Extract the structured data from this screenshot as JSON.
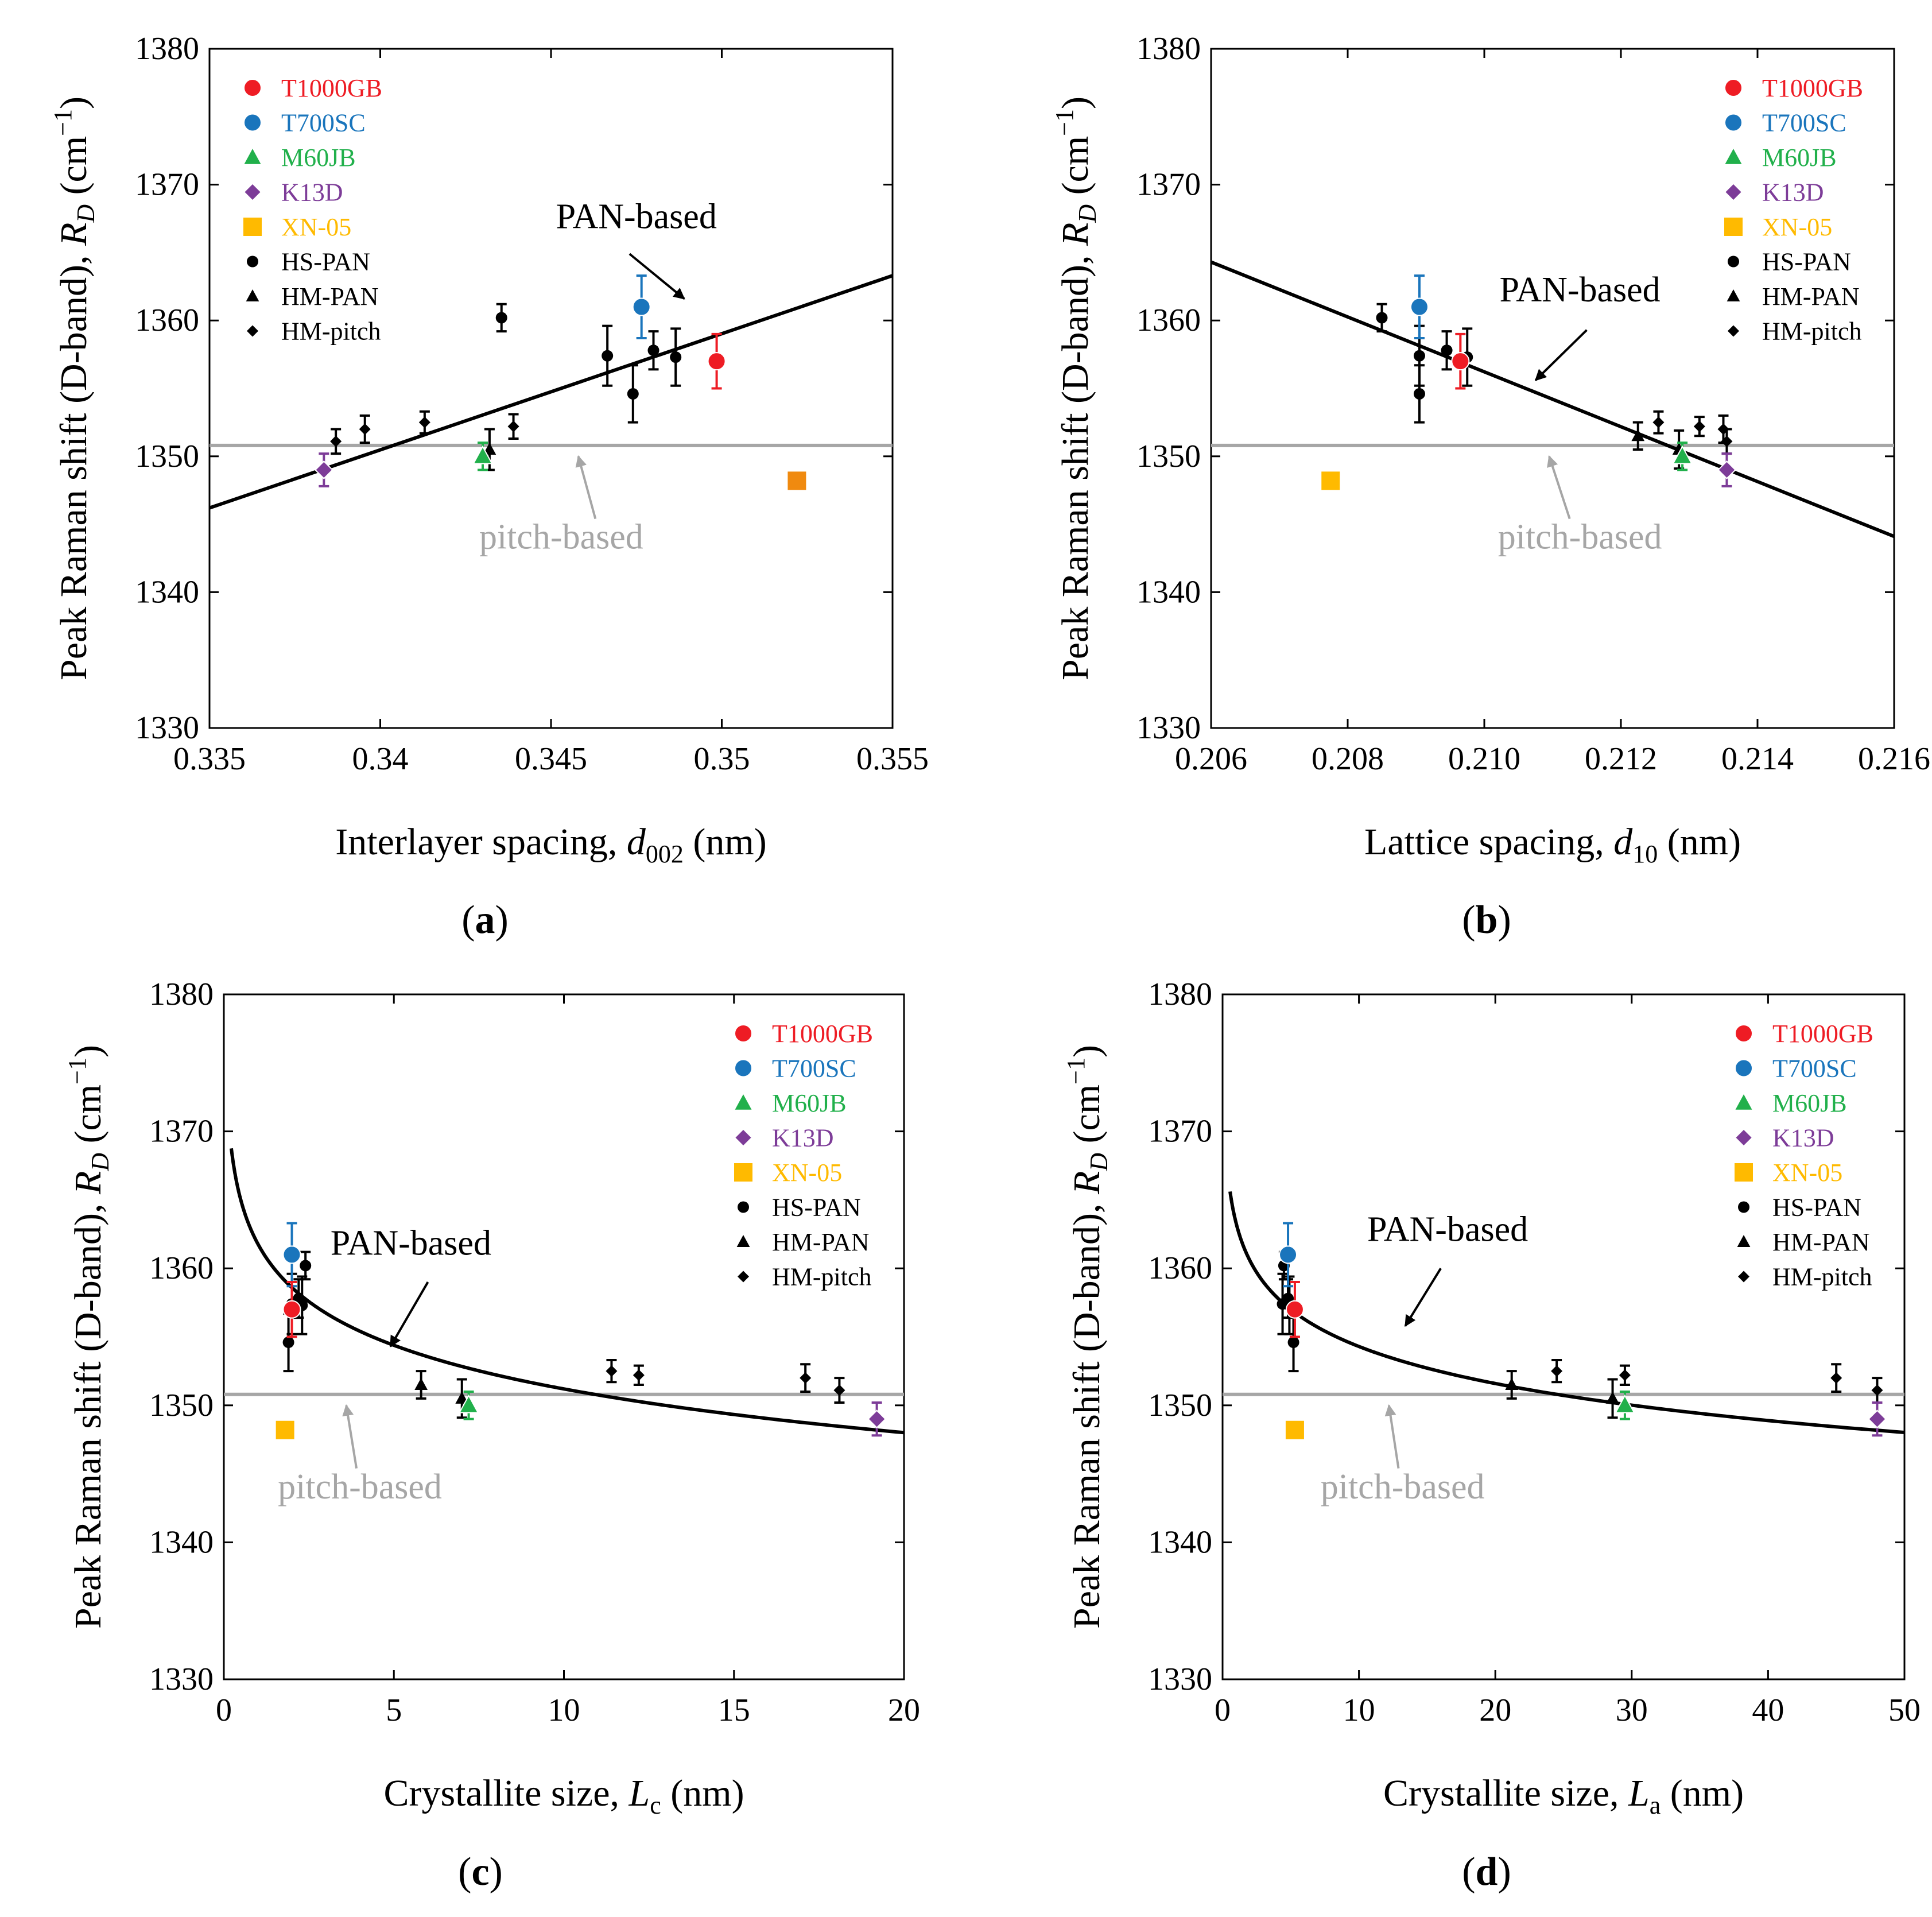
{
  "figure": {
    "ylabel_text": "Peak Raman shift (D-band), ",
    "ylabel_var": "R",
    "ylabel_sub": "D",
    "ylabel_unit": " (cm",
    "ylabel_sup": "−1",
    "ylabel_close": ")",
    "pan_label": "PAN-based",
    "pitch_label": "pitch-based"
  },
  "colors": {
    "T1000GB": "#ee1c24",
    "T700SC": "#1a75bc",
    "M60JB": "#21b04b",
    "K13D": "#7d3c98",
    "XN-05": "#ffba00",
    "black": "#000000",
    "gray": "#a6a6a6"
  },
  "legend": [
    {
      "label": "T1000GB",
      "marker": "circle",
      "color": "#ee1c24",
      "text_color": "#ee1c24"
    },
    {
      "label": "T700SC",
      "marker": "circle",
      "color": "#1a75bc",
      "text_color": "#1a75bc"
    },
    {
      "label": "M60JB",
      "marker": "triangle",
      "color": "#21b04b",
      "text_color": "#21b04b"
    },
    {
      "label": "K13D",
      "marker": "diamond",
      "color": "#7d3c98",
      "text_color": "#7d3c98"
    },
    {
      "label": "XN-05",
      "marker": "square",
      "color": "#ffba00",
      "text_color": "#ffba00"
    },
    {
      "label": "HS-PAN",
      "marker": "circle-small",
      "color": "#000000",
      "text_color": "#000000"
    },
    {
      "label": "HM-PAN",
      "marker": "triangle-small",
      "color": "#000000",
      "text_color": "#000000"
    },
    {
      "label": "HM-pitch",
      "marker": "diamond-small",
      "color": "#000000",
      "text_color": "#000000"
    }
  ],
  "chart_data": [
    {
      "panel": "a",
      "panel_label": "a",
      "type": "scatter",
      "xlabel_pre": "Interlayer spacing, ",
      "xlabel_var": "d",
      "xlabel_sub": "002",
      "xlabel_post": " (nm)",
      "xlim": [
        0.335,
        0.355
      ],
      "ylim": [
        1330,
        1380
      ],
      "xticks": [
        "0.335",
        "0.34",
        "0.345",
        "0.35",
        "0.355"
      ],
      "xtick_values": [
        0.335,
        0.34,
        0.345,
        0.35,
        0.355
      ],
      "yticks": [
        "1330",
        "1340",
        "1350",
        "1360",
        "1370",
        "1380"
      ],
      "ytick_values": [
        1330,
        1340,
        1350,
        1360,
        1370,
        1380
      ],
      "legend_position": "top-left",
      "pitch_line_y": 1350.8,
      "pan_fit": {
        "form": "linear",
        "points": [
          [
            0.335,
            1346.2
          ],
          [
            0.355,
            1363.3
          ]
        ]
      },
      "pan_label_pos": [
        0.3475,
        1366.8
      ],
      "pan_arrow": {
        "from": [
          0.3473,
          1364.9
        ],
        "to": [
          0.3489,
          1361.6
        ]
      },
      "pitch_label_pos": [
        0.3453,
        1343.2
      ],
      "pitch_arrow": {
        "from": [
          0.3463,
          1345.4
        ],
        "to": [
          0.3458,
          1350.0
        ]
      },
      "series": [
        {
          "name": "T1000GB",
          "marker": "circle",
          "color": "#ee1c24",
          "points": [
            {
              "x": 0.34985,
              "y": 1357.0,
              "err": 2.0
            }
          ]
        },
        {
          "name": "T700SC",
          "marker": "circle",
          "color": "#1a75bc",
          "points": [
            {
              "x": 0.34765,
              "y": 1361.0,
              "err": 2.3
            }
          ]
        },
        {
          "name": "M60JB",
          "marker": "triangle",
          "color": "#21b04b",
          "points": [
            {
              "x": 0.343,
              "y": 1350.0,
              "err": 1.0
            }
          ]
        },
        {
          "name": "K13D",
          "marker": "diamond",
          "color": "#7d3c98",
          "points": [
            {
              "x": 0.33835,
              "y": 1349.0,
              "err": 1.2
            }
          ]
        },
        {
          "name": "XN-05",
          "marker": "square",
          "color": "#f08a0f",
          "points": [
            {
              "x": 0.3522,
              "y": 1348.2,
              "err": 0
            }
          ]
        },
        {
          "name": "HS-PAN",
          "marker": "circle-small",
          "color": "#000000",
          "points": [
            {
              "x": 0.34355,
              "y": 1360.2,
              "err": 1.0
            },
            {
              "x": 0.34665,
              "y": 1357.4,
              "err": 2.2
            },
            {
              "x": 0.3474,
              "y": 1354.6,
              "err": 2.1
            },
            {
              "x": 0.348,
              "y": 1357.8,
              "err": 1.4
            },
            {
              "x": 0.34865,
              "y": 1357.3,
              "err": 2.1
            }
          ]
        },
        {
          "name": "HM-PAN",
          "marker": "triangle-small",
          "color": "#000000",
          "points": [
            {
              "x": 0.3432,
              "y": 1350.5,
              "err": 1.5
            }
          ]
        },
        {
          "name": "HM-pitch",
          "marker": "diamond-small",
          "color": "#000000",
          "points": [
            {
              "x": 0.3387,
              "y": 1351.1,
              "err": 0.9
            },
            {
              "x": 0.33955,
              "y": 1352.0,
              "err": 1.0
            },
            {
              "x": 0.3413,
              "y": 1352.5,
              "err": 0.8
            },
            {
              "x": 0.3439,
              "y": 1352.2,
              "err": 0.9
            }
          ]
        }
      ]
    },
    {
      "panel": "b",
      "panel_label": "b",
      "type": "scatter",
      "xlabel_pre": "Lattice spacing, ",
      "xlabel_var": "d",
      "xlabel_sub": "10",
      "xlabel_post": " (nm)",
      "xlim": [
        0.206,
        0.216
      ],
      "ylim": [
        1330,
        1380
      ],
      "xticks": [
        "0.206",
        "0.208",
        "0.210",
        "0.212",
        "0.214",
        "0.216"
      ],
      "xtick_values": [
        0.206,
        0.208,
        0.21,
        0.212,
        0.214,
        0.216
      ],
      "yticks": [
        "1330",
        "1340",
        "1350",
        "1360",
        "1370",
        "1380"
      ],
      "ytick_values": [
        1330,
        1340,
        1350,
        1360,
        1370,
        1380
      ],
      "legend_position": "top-right",
      "pitch_line_y": 1350.8,
      "pan_fit": {
        "form": "linear",
        "points": [
          [
            0.206,
            1364.3
          ],
          [
            0.216,
            1344.1
          ]
        ]
      },
      "pan_label_pos": [
        0.2114,
        1361.4
      ],
      "pan_arrow": {
        "from": [
          0.2115,
          1359.3
        ],
        "to": [
          0.21075,
          1355.6
        ]
      },
      "pitch_label_pos": [
        0.2114,
        1343.2
      ],
      "pitch_arrow": {
        "from": [
          0.21125,
          1345.4
        ],
        "to": [
          0.21095,
          1350.0
        ]
      },
      "series": [
        {
          "name": "T1000GB",
          "marker": "circle",
          "color": "#ee1c24",
          "points": [
            {
              "x": 0.20965,
              "y": 1357.0,
              "err": 2.0
            }
          ]
        },
        {
          "name": "T700SC",
          "marker": "circle",
          "color": "#1a75bc",
          "points": [
            {
              "x": 0.20905,
              "y": 1361.0,
              "err": 2.3
            }
          ]
        },
        {
          "name": "M60JB",
          "marker": "triangle",
          "color": "#21b04b",
          "points": [
            {
              "x": 0.2129,
              "y": 1350.0,
              "err": 1.0
            }
          ]
        },
        {
          "name": "K13D",
          "marker": "diamond",
          "color": "#7d3c98",
          "points": [
            {
              "x": 0.21355,
              "y": 1349.0,
              "err": 1.2
            }
          ]
        },
        {
          "name": "XN-05",
          "marker": "square",
          "color": "#ffba00",
          "points": [
            {
              "x": 0.20775,
              "y": 1348.2,
              "err": 0
            }
          ]
        },
        {
          "name": "HS-PAN",
          "marker": "circle-small",
          "color": "#000000",
          "points": [
            {
              "x": 0.2085,
              "y": 1360.2,
              "err": 1.0
            },
            {
              "x": 0.20905,
              "y": 1357.4,
              "err": 2.2
            },
            {
              "x": 0.20905,
              "y": 1354.6,
              "err": 2.1
            },
            {
              "x": 0.20945,
              "y": 1357.8,
              "err": 1.4
            },
            {
              "x": 0.20975,
              "y": 1357.3,
              "err": 2.1
            }
          ]
        },
        {
          "name": "HM-PAN",
          "marker": "triangle-small",
          "color": "#000000",
          "points": [
            {
              "x": 0.21225,
              "y": 1351.5,
              "err": 1.0
            },
            {
              "x": 0.21285,
              "y": 1350.5,
              "err": 1.4
            }
          ]
        },
        {
          "name": "HM-pitch",
          "marker": "diamond-small",
          "color": "#000000",
          "points": [
            {
              "x": 0.21255,
              "y": 1352.5,
              "err": 0.8
            },
            {
              "x": 0.21315,
              "y": 1352.2,
              "err": 0.7
            },
            {
              "x": 0.2135,
              "y": 1352.0,
              "err": 1.0
            },
            {
              "x": 0.21355,
              "y": 1351.1,
              "err": 0.9
            }
          ]
        }
      ]
    },
    {
      "panel": "c",
      "panel_label": "c",
      "type": "scatter",
      "xlabel_pre": "Crystallite size, ",
      "xlabel_var": "L",
      "xlabel_sub": "c",
      "xlabel_post": " (nm)",
      "xlim": [
        0,
        20
      ],
      "ylim": [
        1330,
        1380
      ],
      "xticks": [
        "0",
        "5",
        "10",
        "15",
        "20"
      ],
      "xtick_values": [
        0,
        5,
        10,
        15,
        20
      ],
      "yticks": [
        "1330",
        "1340",
        "1350",
        "1360",
        "1370",
        "1380"
      ],
      "ytick_values": [
        1330,
        1340,
        1350,
        1360,
        1370,
        1380
      ],
      "legend_position": "top-right",
      "pitch_line_y": 1350.8,
      "pan_fit": {
        "form": "log",
        "a": 1358.6,
        "b": 4.6,
        "x0": 2.0,
        "xmin": 0.22,
        "xmax": 20
      },
      "pan_label_pos": [
        5.5,
        1361.0
      ],
      "pan_arrow": {
        "from": [
          6.0,
          1359.0
        ],
        "to": [
          4.9,
          1354.3
        ]
      },
      "pitch_label_pos": [
        4.0,
        1343.2
      ],
      "pitch_arrow": {
        "from": [
          3.9,
          1345.4
        ],
        "to": [
          3.6,
          1350.0
        ]
      },
      "series": [
        {
          "name": "T1000GB",
          "marker": "circle",
          "color": "#ee1c24",
          "points": [
            {
              "x": 2.0,
              "y": 1357.0,
              "err": 2.0
            }
          ]
        },
        {
          "name": "T700SC",
          "marker": "circle",
          "color": "#1a75bc",
          "points": [
            {
              "x": 2.0,
              "y": 1361.0,
              "err": 2.3
            }
          ]
        },
        {
          "name": "M60JB",
          "marker": "triangle",
          "color": "#21b04b",
          "points": [
            {
              "x": 7.2,
              "y": 1350.0,
              "err": 1.0
            }
          ]
        },
        {
          "name": "K13D",
          "marker": "diamond",
          "color": "#7d3c98",
          "points": [
            {
              "x": 19.2,
              "y": 1349.0,
              "err": 1.2
            }
          ]
        },
        {
          "name": "XN-05",
          "marker": "square",
          "color": "#ffba00",
          "points": [
            {
              "x": 1.8,
              "y": 1348.2,
              "err": 0
            }
          ]
        },
        {
          "name": "HS-PAN",
          "marker": "circle-small",
          "color": "#000000",
          "points": [
            {
              "x": 2.4,
              "y": 1360.2,
              "err": 1.0
            },
            {
              "x": 2.0,
              "y": 1357.4,
              "err": 2.2
            },
            {
              "x": 1.9,
              "y": 1354.6,
              "err": 2.1
            },
            {
              "x": 2.2,
              "y": 1357.8,
              "err": 1.4
            },
            {
              "x": 2.3,
              "y": 1357.3,
              "err": 2.1
            }
          ]
        },
        {
          "name": "HM-PAN",
          "marker": "triangle-small",
          "color": "#000000",
          "points": [
            {
              "x": 5.8,
              "y": 1351.5,
              "err": 1.0
            },
            {
              "x": 7.0,
              "y": 1350.5,
              "err": 1.4
            }
          ]
        },
        {
          "name": "HM-pitch",
          "marker": "diamond-small",
          "color": "#000000",
          "points": [
            {
              "x": 11.4,
              "y": 1352.5,
              "err": 0.8
            },
            {
              "x": 12.2,
              "y": 1352.2,
              "err": 0.7
            },
            {
              "x": 17.1,
              "y": 1352.0,
              "err": 1.0
            },
            {
              "x": 18.1,
              "y": 1351.1,
              "err": 0.9
            }
          ]
        }
      ]
    },
    {
      "panel": "d",
      "panel_label": "d",
      "type": "scatter",
      "xlabel_pre": "Crystallite size, ",
      "xlabel_var": "L",
      "xlabel_sub": "a",
      "xlabel_post": " (nm)",
      "xlim": [
        0,
        50
      ],
      "ylim": [
        1330,
        1380
      ],
      "xticks": [
        "0",
        "10",
        "20",
        "30",
        "40",
        "50"
      ],
      "xtick_values": [
        0,
        10,
        20,
        30,
        40,
        50
      ],
      "yticks": [
        "1330",
        "1340",
        "1350",
        "1360",
        "1370",
        "1380"
      ],
      "ytick_values": [
        1330,
        1340,
        1350,
        1360,
        1370,
        1380
      ],
      "legend_position": "top-right",
      "pitch_line_y": 1350.8,
      "pan_fit": {
        "form": "log",
        "a": 1357.0,
        "b": 3.9,
        "x0": 5.0,
        "xmin": 0.55,
        "xmax": 50
      },
      "pan_label_pos": [
        16.5,
        1362.0
      ],
      "pan_arrow": {
        "from": [
          16.0,
          1360.0
        ],
        "to": [
          13.4,
          1355.8
        ]
      },
      "pitch_label_pos": [
        13.2,
        1343.2
      ],
      "pitch_arrow": {
        "from": [
          12.9,
          1345.4
        ],
        "to": [
          12.2,
          1350.0
        ]
      },
      "series": [
        {
          "name": "T1000GB",
          "marker": "circle",
          "color": "#ee1c24",
          "points": [
            {
              "x": 5.3,
              "y": 1357.0,
              "err": 2.0
            }
          ]
        },
        {
          "name": "T700SC",
          "marker": "circle",
          "color": "#1a75bc",
          "points": [
            {
              "x": 4.8,
              "y": 1361.0,
              "err": 2.3
            }
          ]
        },
        {
          "name": "M60JB",
          "marker": "triangle",
          "color": "#21b04b",
          "points": [
            {
              "x": 29.5,
              "y": 1350.0,
              "err": 1.0
            }
          ]
        },
        {
          "name": "K13D",
          "marker": "diamond",
          "color": "#7d3c98",
          "points": [
            {
              "x": 48.0,
              "y": 1349.0,
              "err": 1.2
            }
          ]
        },
        {
          "name": "XN-05",
          "marker": "square",
          "color": "#ffba00",
          "points": [
            {
              "x": 5.3,
              "y": 1348.2,
              "err": 0
            }
          ]
        },
        {
          "name": "HS-PAN",
          "marker": "circle-small",
          "color": "#000000",
          "points": [
            {
              "x": 4.5,
              "y": 1360.2,
              "err": 1.0
            },
            {
              "x": 4.4,
              "y": 1357.4,
              "err": 2.2
            },
            {
              "x": 5.2,
              "y": 1354.6,
              "err": 2.1
            },
            {
              "x": 4.8,
              "y": 1357.8,
              "err": 1.4
            },
            {
              "x": 4.9,
              "y": 1357.3,
              "err": 2.1
            }
          ]
        },
        {
          "name": "HM-PAN",
          "marker": "triangle-small",
          "color": "#000000",
          "points": [
            {
              "x": 21.2,
              "y": 1351.5,
              "err": 1.0
            },
            {
              "x": 28.6,
              "y": 1350.5,
              "err": 1.4
            }
          ]
        },
        {
          "name": "HM-pitch",
          "marker": "diamond-small",
          "color": "#000000",
          "points": [
            {
              "x": 24.5,
              "y": 1352.5,
              "err": 0.8
            },
            {
              "x": 29.5,
              "y": 1352.2,
              "err": 0.7
            },
            {
              "x": 45.0,
              "y": 1352.0,
              "err": 1.0
            },
            {
              "x": 48.0,
              "y": 1351.1,
              "err": 0.9
            }
          ]
        }
      ]
    }
  ]
}
